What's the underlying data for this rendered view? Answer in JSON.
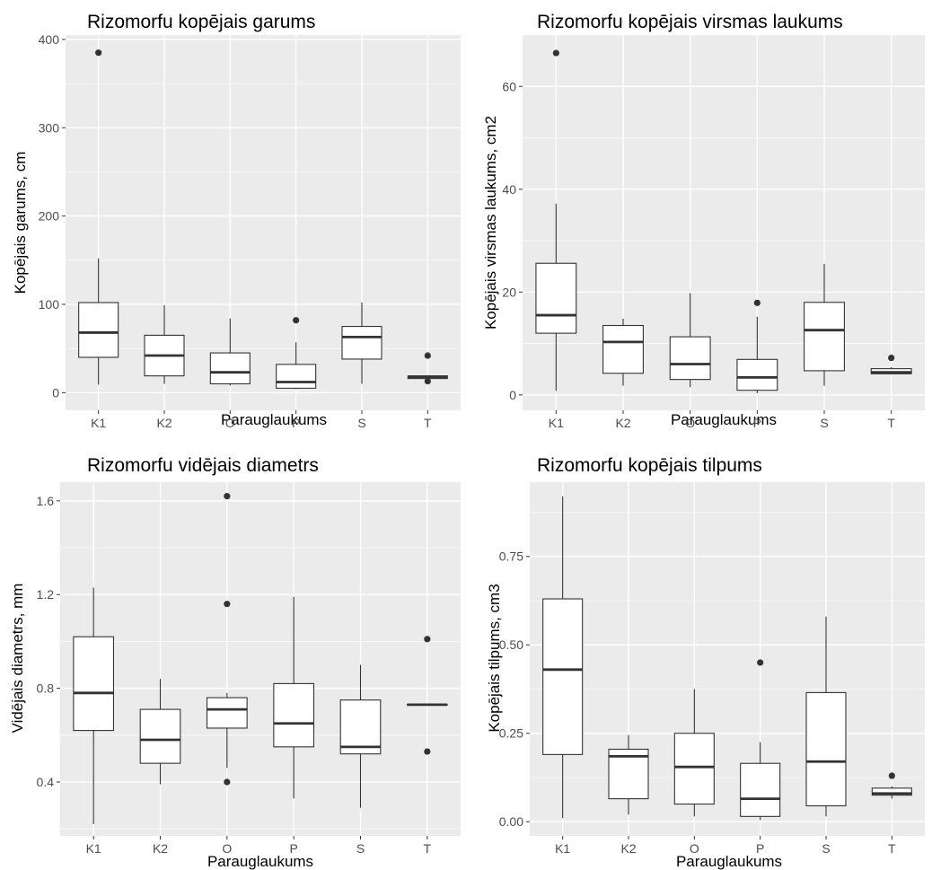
{
  "chart_data": [
    {
      "type": "boxplot",
      "title": "Rizomorfu kopējais garums",
      "xlabel": "Parauglaukums",
      "ylabel": "Kopējais garums, cm",
      "categories": [
        "K1",
        "K2",
        "O",
        "P",
        "S",
        "T"
      ],
      "yticks": [
        0,
        100,
        200,
        300,
        400
      ],
      "ytick_labels": [
        "0",
        "100",
        "200",
        "300",
        "400"
      ],
      "ylim": [
        -20,
        405
      ],
      "grid": true,
      "boxes": [
        {
          "category": "K1",
          "min": 9,
          "q1": 40,
          "median": 68,
          "q3": 102,
          "max": 152,
          "outliers": [
            385
          ]
        },
        {
          "category": "K2",
          "min": 10,
          "q1": 19,
          "median": 42,
          "q3": 65,
          "max": 99,
          "outliers": []
        },
        {
          "category": "O",
          "min": 8,
          "q1": 10,
          "median": 23,
          "q3": 45,
          "max": 84,
          "outliers": []
        },
        {
          "category": "P",
          "min": 4,
          "q1": 5,
          "median": 12,
          "q3": 32,
          "max": 57,
          "outliers": [
            82
          ]
        },
        {
          "category": "S",
          "min": 10,
          "q1": 38,
          "median": 63,
          "q3": 75,
          "max": 102,
          "outliers": []
        },
        {
          "category": "T",
          "min": 16,
          "q1": 16,
          "median": 18,
          "q3": 19,
          "max": 19,
          "outliers": [
            42,
            13
          ]
        }
      ]
    },
    {
      "type": "boxplot",
      "title": "Rizomorfu kopējais virsmas laukums",
      "xlabel": "Parauglaukums",
      "ylabel": "Kopējais virsmas laukums, cm2",
      "categories": [
        "K1",
        "K2",
        "O",
        "P",
        "S",
        "T"
      ],
      "yticks": [
        0,
        20,
        40,
        60
      ],
      "ytick_labels": [
        "0",
        "20",
        "40",
        "60"
      ],
      "ylim": [
        -3,
        70
      ],
      "grid": true,
      "boxes": [
        {
          "category": "K1",
          "min": 0.8,
          "q1": 12,
          "median": 15.5,
          "q3": 25.6,
          "max": 37.2,
          "outliers": [
            66.5
          ]
        },
        {
          "category": "K2",
          "min": 1.8,
          "q1": 4.2,
          "median": 10.3,
          "q3": 13.5,
          "max": 14.8,
          "outliers": []
        },
        {
          "category": "O",
          "min": 1.5,
          "q1": 3,
          "median": 6,
          "q3": 11.3,
          "max": 19.8,
          "outliers": []
        },
        {
          "category": "P",
          "min": 0.3,
          "q1": 0.9,
          "median": 3.4,
          "q3": 6.9,
          "max": 15.2,
          "outliers": [
            17.9
          ]
        },
        {
          "category": "S",
          "min": 1.8,
          "q1": 4.7,
          "median": 12.6,
          "q3": 18,
          "max": 25.5,
          "outliers": []
        },
        {
          "category": "T",
          "min": 4,
          "q1": 4.1,
          "median": 4.4,
          "q3": 5.1,
          "max": 5.4,
          "outliers": [
            7.2
          ]
        }
      ]
    },
    {
      "type": "boxplot",
      "title": "Rizomorfu vidējais diametrs",
      "xlabel": "Parauglaukums",
      "ylabel": "Vidējais diametrs, mm",
      "categories": [
        "K1",
        "K2",
        "O",
        "P",
        "S",
        "T"
      ],
      "yticks": [
        0.4,
        0.8,
        1.2,
        1.6
      ],
      "ytick_labels": [
        "0.4",
        "0.8",
        "1.2",
        "1.6"
      ],
      "ylim": [
        0.17,
        1.68
      ],
      "grid": true,
      "boxes": [
        {
          "category": "K1",
          "min": 0.22,
          "q1": 0.62,
          "median": 0.78,
          "q3": 1.02,
          "max": 1.23,
          "outliers": []
        },
        {
          "category": "K2",
          "min": 0.39,
          "q1": 0.48,
          "median": 0.58,
          "q3": 0.71,
          "max": 0.84,
          "outliers": []
        },
        {
          "category": "O",
          "min": 0.46,
          "q1": 0.63,
          "median": 0.71,
          "q3": 0.76,
          "max": 0.78,
          "outliers": [
            1.62,
            1.16,
            0.4
          ]
        },
        {
          "category": "P",
          "min": 0.33,
          "q1": 0.55,
          "median": 0.65,
          "q3": 0.82,
          "max": 1.19,
          "outliers": []
        },
        {
          "category": "S",
          "min": 0.29,
          "q1": 0.52,
          "median": 0.55,
          "q3": 0.75,
          "max": 0.9,
          "outliers": []
        },
        {
          "category": "T",
          "min": 0.73,
          "q1": 0.73,
          "median": 0.73,
          "q3": 0.73,
          "max": 0.73,
          "outliers": [
            1.01,
            0.53
          ]
        }
      ]
    },
    {
      "type": "boxplot",
      "title": "Rizomorfu kopējais tilpums",
      "xlabel": "Parauglaukums",
      "ylabel": "Kopējais tilpums, cm3",
      "categories": [
        "K1",
        "K2",
        "O",
        "P",
        "S",
        "T"
      ],
      "yticks": [
        0,
        0.25,
        0.5,
        0.75
      ],
      "ytick_labels": [
        "0.00",
        "0.25",
        "0.50",
        "0.75"
      ],
      "ylim": [
        -0.04,
        0.96
      ],
      "grid": true,
      "boxes": [
        {
          "category": "K1",
          "min": 0.01,
          "q1": 0.19,
          "median": 0.43,
          "q3": 0.63,
          "max": 0.92,
          "outliers": []
        },
        {
          "category": "K2",
          "min": 0.02,
          "q1": 0.065,
          "median": 0.185,
          "q3": 0.205,
          "max": 0.245,
          "outliers": []
        },
        {
          "category": "O",
          "min": 0.015,
          "q1": 0.05,
          "median": 0.155,
          "q3": 0.25,
          "max": 0.375,
          "outliers": []
        },
        {
          "category": "P",
          "min": 0.005,
          "q1": 0.015,
          "median": 0.065,
          "q3": 0.165,
          "max": 0.225,
          "outliers": [
            0.45
          ]
        },
        {
          "category": "S",
          "min": 0.015,
          "q1": 0.045,
          "median": 0.17,
          "q3": 0.365,
          "max": 0.58,
          "outliers": []
        },
        {
          "category": "T",
          "min": 0.065,
          "q1": 0.075,
          "median": 0.08,
          "q3": 0.095,
          "max": 0.1,
          "outliers": [
            0.13
          ]
        }
      ]
    }
  ]
}
